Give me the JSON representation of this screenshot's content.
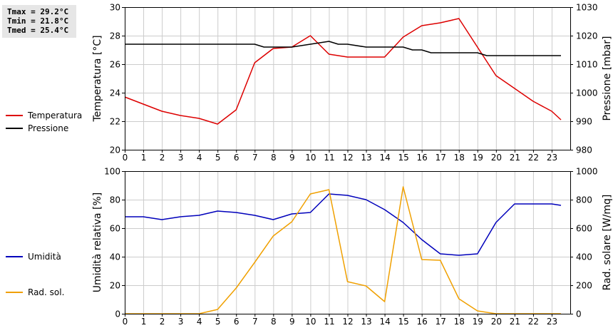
{
  "stats": {
    "tmax": "Tmax = 29.2°C",
    "tmin": "Tmin = 21.8°C",
    "tmed": "Tmed = 25.4°C"
  },
  "colors": {
    "temperature": "#dd0000",
    "pressure": "#000000",
    "humidity": "#0000bb",
    "radiation": "#f0a000",
    "grid": "#cccccc",
    "stats_bg": "#e6e6e6"
  },
  "chart_data": [
    {
      "type": "line",
      "grid": true,
      "legend_placement": "left",
      "xlabel": "",
      "x_ticks": [
        "0",
        "1",
        "2",
        "3",
        "4",
        "5",
        "6",
        "7",
        "8",
        "9",
        "10",
        "11",
        "12",
        "13",
        "14",
        "15",
        "16",
        "17",
        "18",
        "19",
        "20",
        "21",
        "22",
        "23"
      ],
      "xlim": [
        0,
        24
      ],
      "y_left": {
        "label": "Temperatura [°C]",
        "lim": [
          20,
          30
        ],
        "ticks": [
          "20",
          "22",
          "24",
          "26",
          "28",
          "30"
        ]
      },
      "y_right": {
        "label": "Pressione [mbar]",
        "lim": [
          980,
          1030
        ],
        "ticks": [
          "980",
          "990",
          "1000",
          "1010",
          "1020",
          "1030"
        ]
      },
      "series": [
        {
          "name": "Temperatura",
          "axis": "left",
          "color": "#dd0000",
          "x": [
            0,
            1,
            2,
            3,
            4,
            5,
            6,
            7,
            8,
            9,
            10,
            11,
            12,
            13,
            14,
            15,
            16,
            17,
            18,
            19,
            20,
            21,
            22,
            23,
            23.5
          ],
          "values": [
            23.7,
            23.2,
            22.7,
            22.4,
            22.2,
            21.8,
            22.8,
            26.1,
            27.1,
            27.2,
            28.0,
            26.7,
            26.5,
            26.5,
            26.5,
            27.9,
            28.7,
            28.9,
            29.2,
            27.2,
            25.2,
            24.3,
            23.4,
            22.7,
            22.1
          ]
        },
        {
          "name": "Pressione",
          "axis": "right",
          "color": "#000000",
          "x": [
            0,
            1,
            2,
            3,
            4,
            5,
            6,
            7,
            7.5,
            8,
            9,
            10,
            11,
            11.5,
            12,
            13,
            14,
            15,
            15.5,
            16,
            16.5,
            17,
            18,
            19,
            19.5,
            20,
            21,
            22,
            23,
            23.5
          ],
          "values": [
            1017,
            1017,
            1017,
            1017,
            1017,
            1017,
            1017,
            1017,
            1016,
            1016,
            1016,
            1017,
            1018,
            1017,
            1017,
            1016,
            1016,
            1016,
            1015,
            1015,
            1014,
            1014,
            1014,
            1014,
            1013,
            1013,
            1013,
            1013,
            1013,
            1013
          ]
        }
      ]
    },
    {
      "type": "line",
      "grid": true,
      "legend_placement": "left",
      "xlabel": "",
      "x_ticks": [
        "0",
        "1",
        "2",
        "3",
        "4",
        "5",
        "6",
        "7",
        "8",
        "9",
        "10",
        "11",
        "12",
        "13",
        "14",
        "15",
        "16",
        "17",
        "18",
        "19",
        "20",
        "21",
        "22",
        "23"
      ],
      "xlim": [
        0,
        24
      ],
      "y_left": {
        "label": "Umidità relativa [%]",
        "lim": [
          0,
          100
        ],
        "ticks": [
          "0",
          "20",
          "40",
          "60",
          "80",
          "100"
        ]
      },
      "y_right": {
        "label": "Rad. solare [W/mq]",
        "lim": [
          0,
          1000
        ],
        "ticks": [
          "0",
          "200",
          "400",
          "600",
          "800",
          "1000"
        ]
      },
      "series": [
        {
          "name": "Umidità",
          "axis": "left",
          "color": "#0000bb",
          "x": [
            0,
            1,
            2,
            3,
            4,
            5,
            6,
            7,
            8,
            9,
            10,
            11,
            12,
            13,
            14,
            15,
            16,
            17,
            18,
            19,
            20,
            21,
            22,
            23,
            23.5
          ],
          "values": [
            68,
            68,
            66,
            68,
            69,
            72,
            71,
            69,
            66,
            70,
            71,
            84,
            83,
            80,
            73,
            64,
            52,
            42,
            41,
            42,
            64,
            77,
            77,
            77,
            76
          ]
        },
        {
          "name": "Rad. sol.",
          "axis": "right",
          "color": "#f0a000",
          "x": [
            0,
            1,
            2,
            3,
            4,
            5,
            6,
            7,
            8,
            9,
            10,
            11,
            12,
            13,
            14,
            15,
            16,
            17,
            18,
            19,
            20,
            21,
            22,
            23,
            23.5
          ],
          "values": [
            0,
            0,
            0,
            0,
            0,
            30,
            180,
            360,
            545,
            645,
            840,
            870,
            225,
            195,
            85,
            890,
            380,
            375,
            105,
            20,
            0,
            0,
            0,
            0,
            0
          ]
        }
      ]
    }
  ]
}
